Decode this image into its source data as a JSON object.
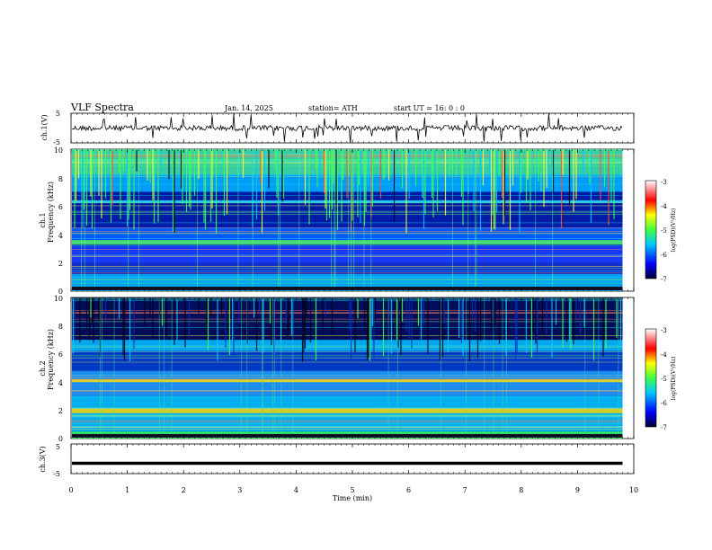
{
  "header": {
    "title": "VLF  Spectra",
    "date": "Jan. 14, 2025",
    "station": "station= ATH",
    "start": "start  UT  =   16: 0  : 0"
  },
  "chart_data": [
    {
      "type": "line",
      "id": "ch1",
      "ylabel": "ch.1(V)",
      "yticks": [
        "5",
        "-5"
      ],
      "ylim": [
        -5,
        5
      ],
      "description": "noisy waveform around ~0 V with occasional spikes",
      "baseline": 0
    },
    {
      "type": "heatmap",
      "id": "ch1-spec",
      "ylabel_channel": "ch.1",
      "ylabel": "Frequency  (kHz)",
      "yticks": [
        "10",
        "8",
        "6",
        "4",
        "2",
        "0"
      ],
      "ylim": [
        0,
        10
      ],
      "colorbar": {
        "label": "log(PSD)(V²/Hz)",
        "ticks": [
          "-3",
          "-4",
          "-5",
          "-6",
          "-7"
        ],
        "range": [
          -7,
          -3
        ]
      }
    },
    {
      "type": "heatmap",
      "id": "ch2-spec",
      "ylabel_channel": "ch.2",
      "ylabel": "Frequency  (kHz)",
      "yticks": [
        "10",
        "8",
        "6",
        "4",
        "2",
        "0"
      ],
      "ylim": [
        0,
        10
      ],
      "colorbar": {
        "label": "log(PSD)(V²/Hz)",
        "ticks": [
          "-3",
          "-4",
          "-5",
          "-6",
          "-7"
        ],
        "range": [
          -7,
          -3
        ]
      }
    },
    {
      "type": "line",
      "id": "ch3",
      "ylabel": "ch.3(V)",
      "yticks": [
        "5",
        "-5"
      ],
      "ylim": [
        -5,
        5
      ],
      "baseline": -1.5
    }
  ],
  "xaxis": {
    "label": "Time  (min)",
    "ticks": [
      "0",
      "1",
      "2",
      "3",
      "4",
      "5",
      "6",
      "7",
      "8",
      "9",
      "10"
    ],
    "xlim": [
      0,
      10
    ],
    "data_end": 9.8
  },
  "colors": {
    "low": "#000050",
    "mid": "#00c8ff",
    "green": "#40ff40",
    "yellow": "#ffff00",
    "high": "#ff0000"
  }
}
